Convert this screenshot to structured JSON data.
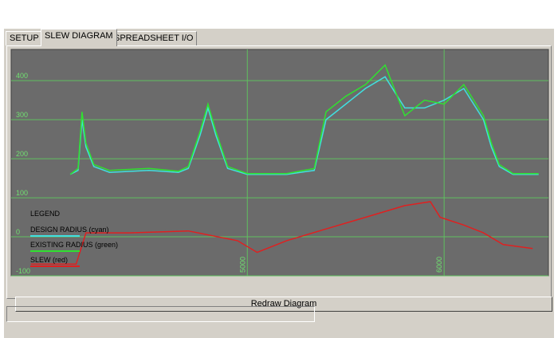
{
  "tabs": [
    "SETUP",
    "SLEW DIAGRAM",
    "SPREADSHEET I/O"
  ],
  "chart_data": {
    "type": "line",
    "legend_title": "LEGEND",
    "xlim": [
      3800,
      6530
    ],
    "ylim": [
      -100,
      480
    ],
    "xticks": [
      5000,
      6000
    ],
    "yticks": [
      400,
      300,
      200,
      100,
      0,
      -100
    ],
    "grid": true,
    "series": [
      {
        "name": "DESIGN RADIUS (cyan)",
        "color": "#40e0e0",
        "x": [
          4100,
          4140,
          4160,
          4180,
          4220,
          4300,
          4500,
          4650,
          4700,
          4760,
          4800,
          4840,
          4900,
          5000,
          5200,
          5340,
          5400,
          5500,
          5600,
          5700,
          5800,
          5900,
          6000,
          6100,
          6200,
          6240,
          6280,
          6350,
          6480
        ],
        "values": [
          160,
          170,
          300,
          230,
          180,
          165,
          170,
          165,
          175,
          260,
          330,
          260,
          175,
          160,
          160,
          170,
          300,
          340,
          380,
          410,
          330,
          330,
          350,
          380,
          300,
          230,
          180,
          160,
          160
        ]
      },
      {
        "name": "EXISTING RADIUS (green)",
        "color": "#30e030",
        "x": [
          4100,
          4140,
          4160,
          4180,
          4220,
          4300,
          4500,
          4650,
          4700,
          4760,
          4800,
          4840,
          4900,
          5000,
          5200,
          5340,
          5400,
          5500,
          5600,
          5700,
          5800,
          5900,
          6000,
          6100,
          6200,
          6240,
          6280,
          6350,
          6480
        ],
        "values": [
          160,
          175,
          320,
          240,
          185,
          170,
          175,
          168,
          180,
          270,
          340,
          270,
          180,
          162,
          162,
          175,
          320,
          360,
          390,
          440,
          310,
          350,
          340,
          390,
          310,
          240,
          185,
          162,
          162
        ]
      },
      {
        "name": "SLEW (red)",
        "color": "#e02020",
        "x": [
          3900,
          4130,
          4180,
          4400,
          4700,
          4950,
          5050,
          5200,
          5400,
          5600,
          5800,
          5930,
          5980,
          6100,
          6200,
          6300,
          6450
        ],
        "values": [
          -70,
          -70,
          10,
          10,
          15,
          -10,
          -40,
          -10,
          20,
          50,
          80,
          90,
          50,
          30,
          10,
          -20,
          -30
        ]
      }
    ]
  },
  "button": "Redraw Diagram"
}
